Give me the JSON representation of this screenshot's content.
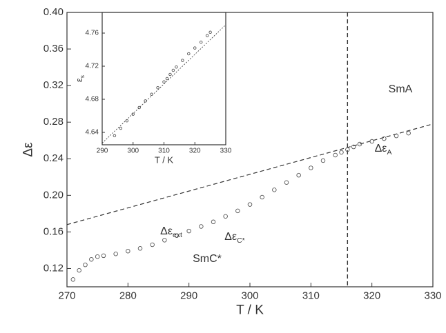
{
  "chart_data": [
    {
      "type": "scatter",
      "xlabel": "T / K",
      "ylabel": "Δε",
      "xlim": [
        270,
        330
      ],
      "xticks": [
        270,
        280,
        290,
        300,
        310,
        320,
        330
      ],
      "ylim": [
        0.1,
        0.4
      ],
      "yticks": [
        0.12,
        0.16,
        {
          "value": 0.2,
          "label": "0.20"
        },
        0.24,
        0.28,
        0.32,
        0.36,
        {
          "value": 0.4,
          "label": "0.40"
        }
      ],
      "x": [
        271,
        272,
        273,
        274,
        275,
        276,
        278,
        280,
        282,
        284,
        286,
        288,
        290,
        292,
        294,
        296,
        298,
        300,
        302,
        304,
        306,
        308,
        310,
        312,
        314,
        315,
        316,
        317,
        318,
        320,
        322,
        324,
        326
      ],
      "values": [
        0.108,
        0.118,
        0.124,
        0.13,
        0.133,
        0.134,
        0.136,
        0.139,
        0.142,
        0.146,
        0.151,
        0.156,
        0.161,
        0.166,
        0.171,
        0.177,
        0.183,
        0.19,
        0.198,
        0.206,
        0.214,
        0.222,
        0.23,
        0.238,
        0.244,
        0.247,
        0.25,
        0.253,
        0.256,
        0.259,
        0.262,
        0.265,
        0.268
      ],
      "color": "#555555",
      "guide_line": {
        "x": [
          270,
          330
        ],
        "y": [
          0.168,
          0.278
        ]
      },
      "transition_x": 316,
      "annotations": [
        "SmA",
        "SmC*",
        {
          "text": "Δε",
          "sub": "ext"
        },
        {
          "text": "Δε",
          "sub": "C*"
        },
        {
          "text": "Δε",
          "sub": "A"
        }
      ]
    },
    {
      "type": "scatter",
      "xlabel": "T / K",
      "ylabel": {
        "text": "ε",
        "sub": "s"
      },
      "xlim": [
        290,
        330
      ],
      "xticks": [
        290,
        300,
        310,
        320,
        330
      ],
      "ylim": [
        4.625,
        4.785
      ],
      "yticks": [
        4.64,
        4.68,
        4.72,
        4.76
      ],
      "x": [
        294,
        296,
        298,
        300,
        302,
        304,
        306,
        308,
        310,
        311,
        312,
        313,
        314,
        316,
        318,
        320,
        322,
        324,
        325
      ],
      "values": [
        4.636,
        4.645,
        4.654,
        4.662,
        4.67,
        4.678,
        4.686,
        4.694,
        4.701,
        4.705,
        4.71,
        4.715,
        4.719,
        4.727,
        4.735,
        4.742,
        4.749,
        4.757,
        4.761
      ],
      "color": "#555555",
      "guide_line": {
        "x": [
          290,
          330
        ],
        "y": [
          4.627,
          4.77
        ]
      }
    }
  ]
}
